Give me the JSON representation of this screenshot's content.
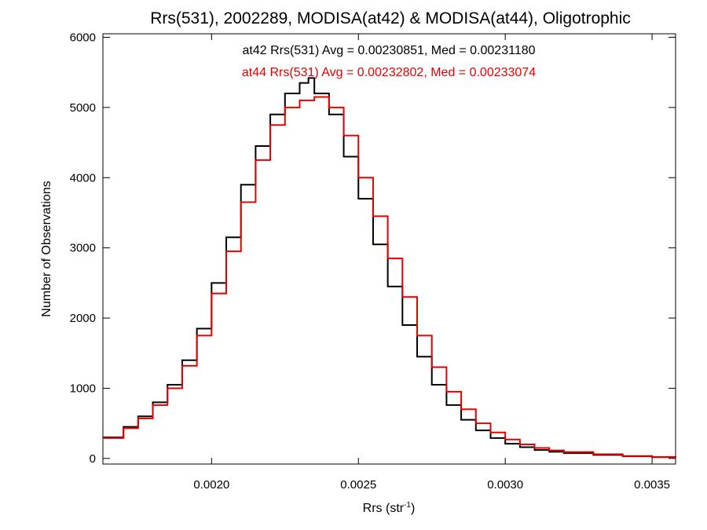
{
  "chart_data": {
    "type": "line",
    "step": true,
    "title": "Rrs(531), 2002289, MODISA(at42) & MODISA(at44), Oligotrophic",
    "xlabel": {
      "base": "Rrs (str",
      "sup": "-1",
      "close": ")"
    },
    "ylabel": "Number of Observations",
    "xlim": [
      0.00163,
      0.00358
    ],
    "ylim": [
      -80,
      6050
    ],
    "grid": false,
    "legend": "top-center",
    "x_ticks": [
      {
        "value": 0.002,
        "label": "0.0020"
      },
      {
        "value": 0.0025,
        "label": "0.0025"
      },
      {
        "value": 0.003,
        "label": "0.0030"
      },
      {
        "value": 0.0035,
        "label": "0.0035"
      }
    ],
    "y_ticks": [
      {
        "value": 0,
        "label": "0"
      },
      {
        "value": 1000,
        "label": "1000"
      },
      {
        "value": 2000,
        "label": "2000"
      },
      {
        "value": 3000,
        "label": "3000"
      },
      {
        "value": 4000,
        "label": "4000"
      },
      {
        "value": 5000,
        "label": "5000"
      },
      {
        "value": 6000,
        "label": "6000"
      }
    ],
    "annotations": [
      {
        "text": "at42 Rrs(531) Avg = 0.00230851, Med = 0.00231180",
        "color": "#000000"
      },
      {
        "text": "at44 Rrs(531) Avg = 0.00232802, Med = 0.00233074",
        "color": "#e60000"
      }
    ],
    "series": [
      {
        "color": "#000000",
        "x": [
          0.00163,
          0.0017,
          0.00175,
          0.0018,
          0.00185,
          0.0019,
          0.00195,
          0.002,
          0.00205,
          0.0021,
          0.00215,
          0.0022,
          0.00225,
          0.0023,
          0.00233,
          0.00235,
          0.0024,
          0.00245,
          0.0025,
          0.00255,
          0.0026,
          0.00265,
          0.0027,
          0.00275,
          0.0028,
          0.00285,
          0.0029,
          0.00295,
          0.003,
          0.00305,
          0.0031,
          0.00315,
          0.0032,
          0.0033,
          0.0034,
          0.0035,
          0.00358
        ],
        "y": [
          300,
          450,
          600,
          800,
          1050,
          1400,
          1850,
          2500,
          3150,
          3900,
          4450,
          4900,
          5200,
          5350,
          5420,
          5200,
          4900,
          4300,
          3700,
          3050,
          2450,
          1900,
          1450,
          1050,
          760,
          550,
          400,
          290,
          210,
          160,
          120,
          95,
          75,
          50,
          30,
          18,
          12
        ]
      },
      {
        "color": "#e60000",
        "x": [
          0.00163,
          0.0017,
          0.00175,
          0.0018,
          0.00185,
          0.0019,
          0.00195,
          0.002,
          0.00205,
          0.0021,
          0.00215,
          0.0022,
          0.00225,
          0.0023,
          0.00235,
          0.0024,
          0.00245,
          0.0025,
          0.00255,
          0.0026,
          0.00265,
          0.0027,
          0.00275,
          0.0028,
          0.00285,
          0.0029,
          0.00295,
          0.003,
          0.00305,
          0.0031,
          0.00315,
          0.0032,
          0.0033,
          0.0034,
          0.0035,
          0.00358
        ],
        "y": [
          290,
          430,
          570,
          760,
          1000,
          1320,
          1750,
          2350,
          2950,
          3650,
          4250,
          4750,
          5000,
          5100,
          5150,
          5000,
          4600,
          4000,
          3450,
          2850,
          2300,
          1750,
          1300,
          950,
          700,
          500,
          370,
          270,
          200,
          150,
          115,
          90,
          60,
          35,
          20,
          12
        ]
      }
    ]
  }
}
